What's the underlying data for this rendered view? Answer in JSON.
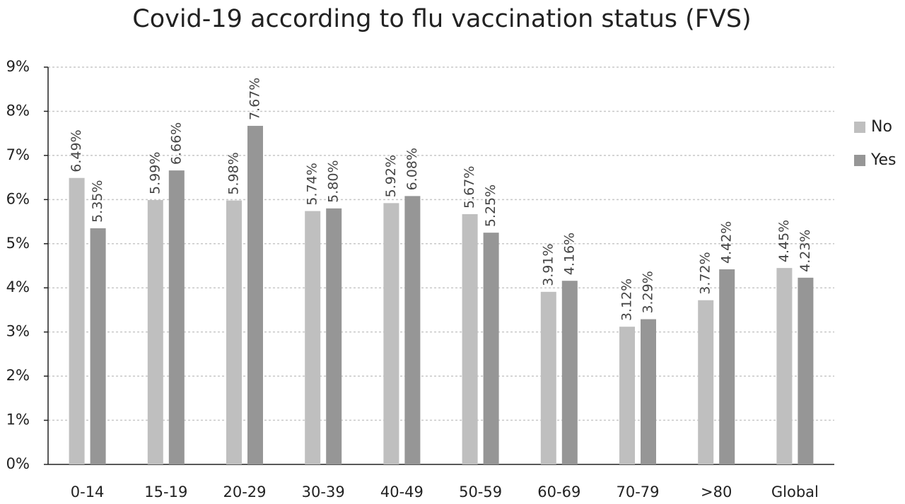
{
  "chart_data": {
    "type": "bar",
    "title": "Covid-19 according to flu vaccination status (FVS)",
    "categories": [
      "0-14",
      "15-19",
      "20-29",
      "30-39",
      "40-49",
      "50-59",
      "60-69",
      "70-79",
      ">80",
      "Global"
    ],
    "series": [
      {
        "name": "No",
        "color": "#bfbfbf",
        "values": [
          6.49,
          5.99,
          5.98,
          5.74,
          5.92,
          5.67,
          3.91,
          3.12,
          3.72,
          4.45
        ],
        "value_labels": [
          "6.49%",
          "5.99%",
          "5.98%",
          "5.74%",
          "5.92%",
          "5.67%",
          "3.91%",
          "3.12%",
          "3.72%",
          "4.45%"
        ]
      },
      {
        "name": "Yes",
        "color": "#969696",
        "values": [
          5.35,
          6.66,
          7.67,
          5.8,
          6.08,
          5.25,
          4.16,
          3.29,
          4.42,
          4.23
        ],
        "value_labels": [
          "5.35%",
          "6.66%",
          "7.67%",
          "5.80%",
          "6.08%",
          "5.25%",
          "4.16%",
          "3.29%",
          "4.42%",
          "4.23%"
        ]
      }
    ],
    "ylim": [
      0,
      9
    ],
    "yticks": [
      {
        "value": 0,
        "label": "0%"
      },
      {
        "value": 1,
        "label": "1%"
      },
      {
        "value": 2,
        "label": "2%"
      },
      {
        "value": 3,
        "label": "3%"
      },
      {
        "value": 4,
        "label": "4%"
      },
      {
        "value": 5,
        "label": "5%"
      },
      {
        "value": 6,
        "label": "6%"
      },
      {
        "value": 7,
        "label": "7%"
      },
      {
        "value": 8,
        "label": "8%"
      },
      {
        "value": 9,
        "label": "9%"
      }
    ],
    "grid": true,
    "legend": "right"
  }
}
